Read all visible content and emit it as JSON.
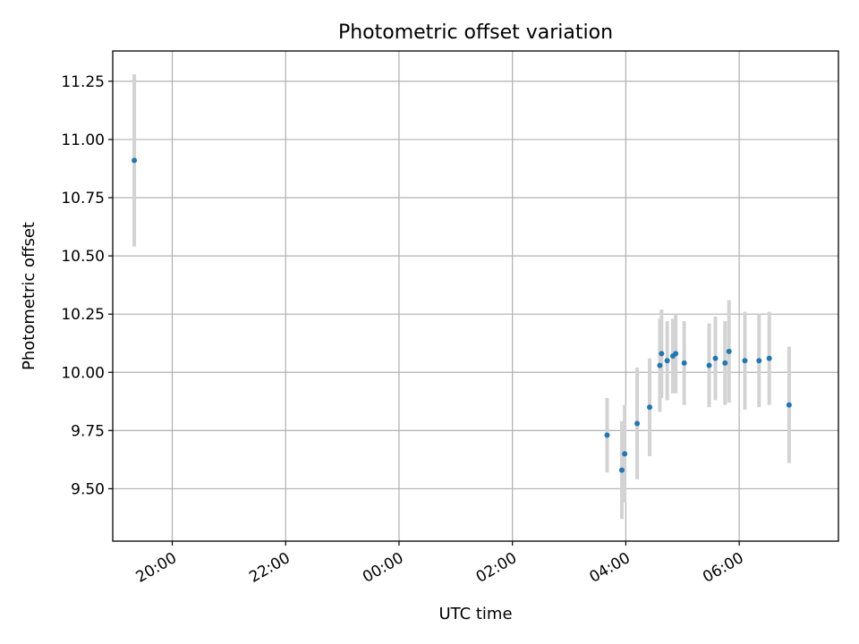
{
  "chart_data": {
    "type": "scatter",
    "title": "Photometric offset variation",
    "xlabel": "UTC time",
    "ylabel": "Photometric offset",
    "x_unit": "hours since 18:00 UTC",
    "xlim": [
      0.95,
      13.75
    ],
    "ylim": [
      9.275,
      11.38
    ],
    "grid": true,
    "x_ticks": [
      {
        "value": 2,
        "label": "20:00"
      },
      {
        "value": 4,
        "label": "22:00"
      },
      {
        "value": 6,
        "label": "00:00"
      },
      {
        "value": 8,
        "label": "02:00"
      },
      {
        "value": 10,
        "label": "04:00"
      },
      {
        "value": 12,
        "label": "06:00"
      }
    ],
    "y_ticks": [
      {
        "value": 9.5,
        "label": "9.50"
      },
      {
        "value": 9.75,
        "label": "9.75"
      },
      {
        "value": 10.0,
        "label": "10.00"
      },
      {
        "value": 10.25,
        "label": "10.25"
      },
      {
        "value": 10.5,
        "label": "10.50"
      },
      {
        "value": 10.75,
        "label": "10.75"
      },
      {
        "value": 11.0,
        "label": "11.00"
      },
      {
        "value": 11.25,
        "label": "11.25"
      }
    ],
    "series": [
      {
        "points": [
          {
            "x": 1.33,
            "y": 10.91,
            "err": 0.37
          },
          {
            "x": 9.67,
            "y": 9.73,
            "err": 0.16
          },
          {
            "x": 9.93,
            "y": 9.58,
            "err": 0.21
          },
          {
            "x": 9.98,
            "y": 9.65,
            "err": 0.21
          },
          {
            "x": 10.2,
            "y": 9.78,
            "err": 0.24
          },
          {
            "x": 10.42,
            "y": 9.85,
            "err": 0.21
          },
          {
            "x": 10.6,
            "y": 10.03,
            "err": 0.2
          },
          {
            "x": 10.63,
            "y": 10.08,
            "err": 0.19
          },
          {
            "x": 10.73,
            "y": 10.05,
            "err": 0.17
          },
          {
            "x": 10.83,
            "y": 10.07,
            "err": 0.16
          },
          {
            "x": 10.88,
            "y": 10.08,
            "err": 0.17
          },
          {
            "x": 11.03,
            "y": 10.04,
            "err": 0.18
          },
          {
            "x": 11.47,
            "y": 10.03,
            "err": 0.18
          },
          {
            "x": 11.58,
            "y": 10.06,
            "err": 0.18
          },
          {
            "x": 11.75,
            "y": 10.04,
            "err": 0.18
          },
          {
            "x": 11.82,
            "y": 10.09,
            "err": 0.22
          },
          {
            "x": 12.1,
            "y": 10.05,
            "err": 0.21
          },
          {
            "x": 12.35,
            "y": 10.05,
            "err": 0.2
          },
          {
            "x": 12.53,
            "y": 10.06,
            "err": 0.2
          },
          {
            "x": 12.88,
            "y": 9.86,
            "err": 0.25
          }
        ]
      }
    ],
    "colors": {
      "marker": "#1f77b4",
      "errorbar": "#d3d3d3",
      "grid": "#b0b0b0",
      "axes": "#000000"
    }
  }
}
